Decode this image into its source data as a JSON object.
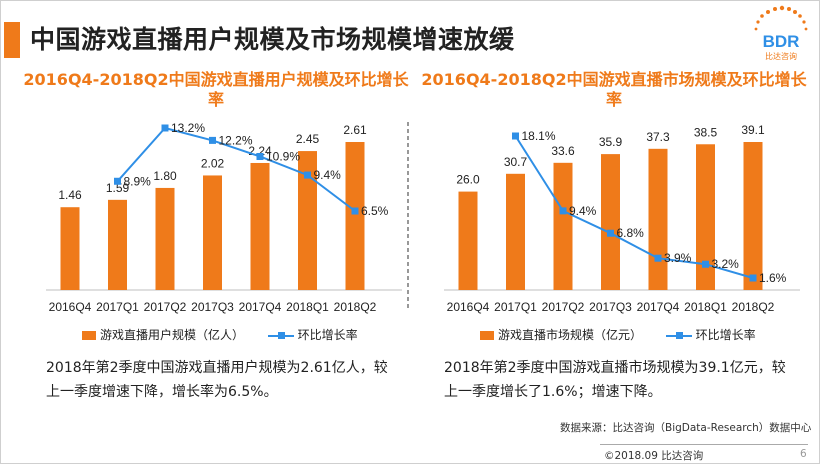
{
  "header": {
    "title": "中国游戏直播用户规模及市场规模增速放缓"
  },
  "logo": {
    "text": "BDR",
    "subtext": "比达咨询"
  },
  "charts": {
    "left": {
      "title": "2016Q4-2018Q2中国游戏直播用户规模及环比增长率",
      "legend": {
        "bar": "游戏直播用户规模（亿人）",
        "line": "环比增长率"
      },
      "caption": "2018年第2季度中国游戏直播用户规模为2.61亿人，较上一季度增速下降，增长率为6.5%。"
    },
    "right": {
      "title": "2016Q4-2018Q2中国游戏直播市场规模及环比增长率",
      "legend": {
        "bar": "游戏直播市场规模（亿元）",
        "line": "环比增长率"
      },
      "caption": "2018年第2季度中国游戏直播市场规模为39.1亿元，较上一季度增长了1.6%；增速下降。"
    }
  },
  "chart_data": [
    {
      "type": "bar",
      "title": "2016Q4-2018Q2中国游戏直播用户规模及环比增长率",
      "categories": [
        "2016Q4",
        "2017Q1",
        "2017Q2",
        "2017Q3",
        "2017Q4",
        "2018Q1",
        "2018Q2"
      ],
      "series": [
        {
          "name": "游戏直播用户规模（亿人）",
          "type": "bar",
          "values": [
            1.46,
            1.59,
            1.8,
            2.02,
            2.24,
            2.45,
            2.61
          ],
          "labels": [
            "1.46",
            "1.59",
            "1.80",
            "2.02",
            "2.24",
            "2.45",
            "2.61"
          ]
        },
        {
          "name": "环比增长率",
          "type": "line",
          "values": [
            null,
            8.9,
            13.2,
            12.2,
            10.9,
            9.4,
            6.5
          ],
          "labels": [
            "",
            "8.9%",
            "13.2%",
            "12.2%",
            "10.9%",
            "9.4%",
            "6.5%"
          ]
        }
      ],
      "legend": "bottom",
      "grid": false
    },
    {
      "type": "bar",
      "title": "2016Q4-2018Q2中国游戏直播市场规模及环比增长率",
      "categories": [
        "2016Q4",
        "2017Q1",
        "2017Q2",
        "2017Q3",
        "2017Q4",
        "2018Q1",
        "2018Q2"
      ],
      "series": [
        {
          "name": "游戏直播市场规模（亿元）",
          "type": "bar",
          "values": [
            26.0,
            30.7,
            33.6,
            35.9,
            37.3,
            38.5,
            39.1
          ],
          "labels": [
            "26.0",
            "30.7",
            "33.6",
            "35.9",
            "37.3",
            "38.5",
            "39.1"
          ]
        },
        {
          "name": "环比增长率",
          "type": "line",
          "values": [
            null,
            18.1,
            9.4,
            6.8,
            3.9,
            3.2,
            1.6
          ],
          "labels": [
            "",
            "18.1%",
            "9.4%",
            "6.8%",
            "3.9%",
            "3.2%",
            "1.6%"
          ]
        }
      ],
      "legend": "bottom",
      "grid": false
    }
  ],
  "footer": {
    "source": "数据来源：比达咨询（BigData-Research）数据中心",
    "copyright": "©2018.09 比达咨询",
    "page": "6"
  },
  "colors": {
    "accent": "#ef7a1a",
    "bar": "#ef7a1a",
    "line": "#2f8fe6",
    "text": "#222222"
  }
}
